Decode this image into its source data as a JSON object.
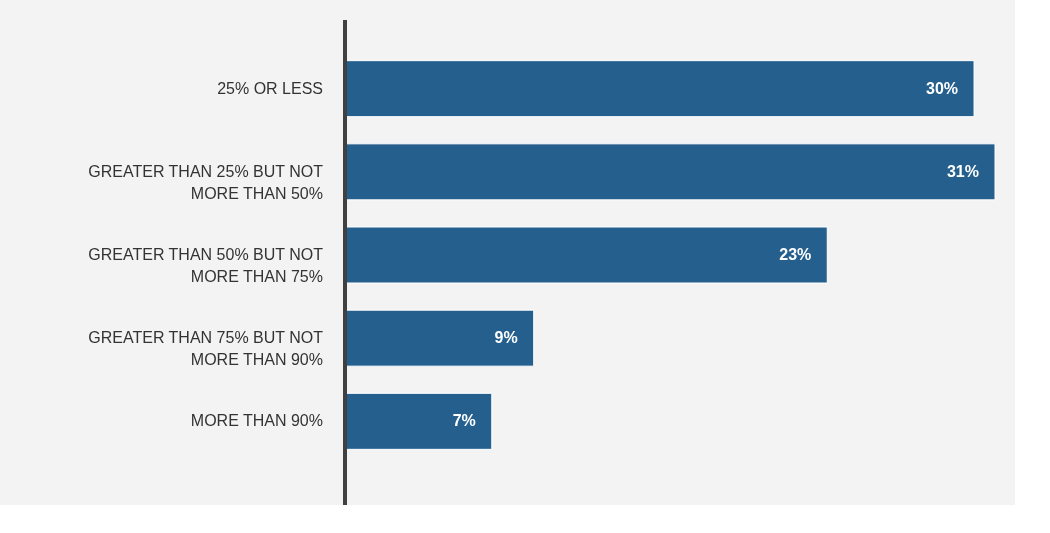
{
  "chart_data": {
    "type": "bar",
    "orientation": "horizontal",
    "categories": [
      "25% OR LESS",
      "GREATER THAN 25% BUT NOT MORE THAN 50%",
      "GREATER THAN 50% BUT NOT MORE THAN 75%",
      "GREATER THAN 75% BUT NOT MORE THAN 90%",
      "MORE THAN 90%"
    ],
    "values": [
      30,
      31,
      23,
      9,
      7
    ],
    "value_labels": [
      "30%",
      "31%",
      "23%",
      "9%",
      "7%"
    ],
    "color": "#245f8e",
    "tick_labels": "y"
  }
}
